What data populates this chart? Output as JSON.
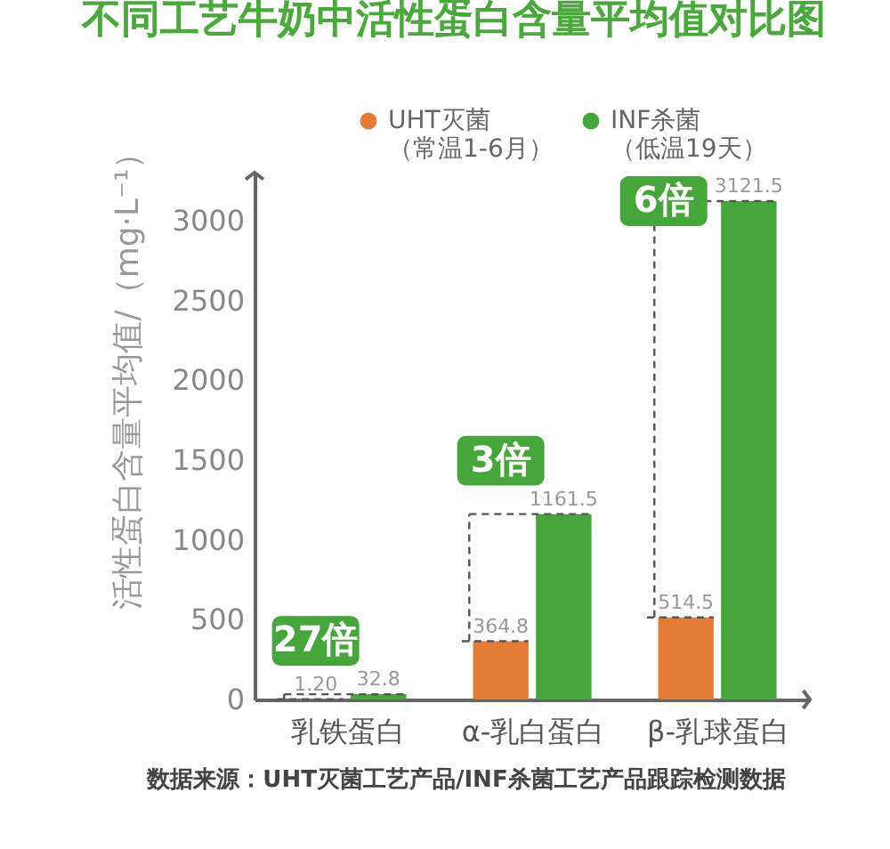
{
  "chart_data": {
    "type": "bar",
    "title": "不同工艺牛奶中活性蛋白含量平均值对比图",
    "ylabel": "活性蛋白含量平均值/（mg·L⁻¹）",
    "categories": [
      "乳铁蛋白",
      "α-乳白蛋白",
      "β-乳球蛋白"
    ],
    "series": [
      {
        "name": "UHT灭菌（常温1-6月）",
        "color": "#e27c36",
        "values": [
          1.2,
          364.8,
          514.5
        ],
        "value_labels": [
          "1.20",
          "364.8",
          "514.5"
        ]
      },
      {
        "name": "INF杀菌（低温19天）",
        "color": "#46a63b",
        "values": [
          32.8,
          1161.5,
          3121.5
        ],
        "value_labels": [
          "32.8",
          "1161.5",
          "3121.5"
        ]
      }
    ],
    "ylim": [
      0,
      3300
    ],
    "yticks": [
      0,
      500,
      1000,
      1500,
      2000,
      2500,
      3000
    ],
    "legend": "top",
    "annotations": [
      {
        "text": "27倍",
        "x": "乳铁蛋白",
        "y": 32.8
      },
      {
        "text": "3倍",
        "x": "α-乳白蛋白",
        "y": 1161.5
      },
      {
        "text": "6倍",
        "x": "β-乳球蛋白",
        "y": 3121.5
      },
      "数据来源：UHT灭菌工艺产品/INF杀菌工艺产品跟踪检测数据"
    ]
  }
}
